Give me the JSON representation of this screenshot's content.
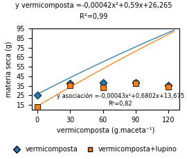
{
  "chart_data": {
    "type": "scatter",
    "title": "y vermicomposta =-0,00042x²+0,59x+26,265",
    "subtitle": "R²=0,99",
    "annotations": [
      "y asociación =-0,00043x²+0,6802x+13,675",
      "R²=0,82"
    ],
    "x_label": "vermicomposta (g.maceta⁻¹)",
    "y_label": "materia seca (g)",
    "xlim": [
      -5,
      130
    ],
    "ylim": [
      10,
      95
    ],
    "xticks": [
      0,
      30,
      60,
      90,
      120
    ],
    "yticks": [
      15,
      25,
      35,
      45,
      55,
      65,
      75,
      85,
      95
    ],
    "legend": "lower center",
    "series": [
      {
        "name": "vermicomposta",
        "type": "scatter",
        "marker": "diamond",
        "x": [
          0,
          30,
          60,
          90,
          120
        ],
        "values": [
          25.0,
          37.5,
          38.5,
          38.5,
          35.5
        ]
      },
      {
        "name": "vermicomposta+lupino",
        "type": "scatter",
        "marker": "square",
        "x": [
          0,
          30,
          60,
          90,
          120
        ],
        "values": [
          13.0,
          35.5,
          33.5,
          37.5,
          34.0
        ]
      },
      {
        "type": "line",
        "x": [
          0,
          5,
          10,
          15,
          20,
          25,
          30,
          35,
          40,
          45,
          50,
          55,
          60,
          65,
          70,
          75,
          80,
          85,
          90,
          95,
          100,
          105,
          110,
          115,
          120,
          125
        ],
        "values": [
          26.265,
          29.2045,
          32.123,
          35.0205,
          37.897,
          40.7525,
          43.587,
          46.4005,
          49.193,
          51.9645,
          54.715,
          57.4445,
          60.153,
          62.8405,
          65.507,
          68.1525,
          70.777,
          73.3805,
          75.963,
          78.5245,
          81.065,
          83.5845,
          86.083,
          88.5605,
          91.017,
          93.4525
        ]
      },
      {
        "type": "line",
        "x": [
          0,
          5,
          10,
          15,
          20,
          25,
          30,
          35,
          40,
          45,
          50,
          55,
          60,
          65,
          70,
          75,
          80,
          85,
          90,
          95,
          100,
          105,
          110,
          115,
          120,
          125
        ],
        "values": [
          13.675,
          17.06525,
          20.434,
          23.78125,
          27.107,
          30.41125,
          33.694,
          36.95525,
          40.195,
          43.41325,
          46.61,
          49.78525,
          52.939,
          56.07125,
          59.182,
          62.27125,
          65.339,
          68.38525,
          71.41,
          74.41325,
          77.395,
          80.35525,
          83.294,
          86.21125,
          89.107,
          91.98125
        ]
      }
    ]
  }
}
